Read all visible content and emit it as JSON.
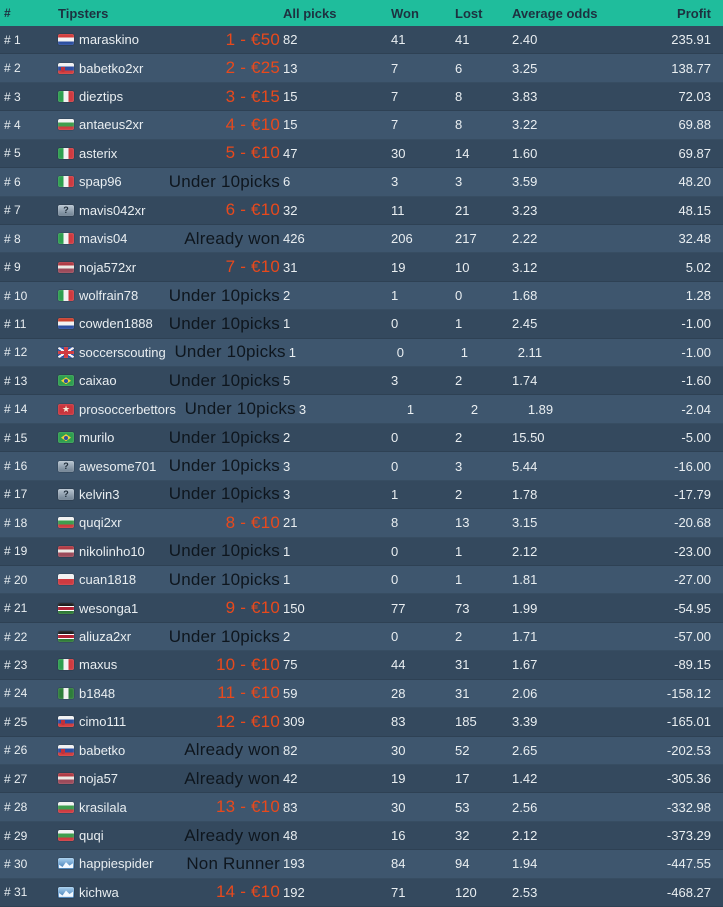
{
  "header": {
    "rank": "#",
    "tipsters": "Tipsters",
    "all_picks": "All picks",
    "won": "Won",
    "lost": "Lost",
    "avg_odds": "Average odds",
    "profit": "Profit"
  },
  "colors": {
    "header_bg": "#1fbd9c",
    "header_text": "#1d3140",
    "row_odd": "#34495e",
    "row_even": "#3e566e",
    "row_text": "#e9eef1",
    "prize_text": "#e8491c",
    "status_text": "#0e161e"
  },
  "rows": [
    {
      "rank": "# 1",
      "name": "maraskino",
      "flag": "croatia",
      "label": "1 - €50",
      "label_type": "prize",
      "all_picks": "82",
      "won": "41",
      "lost": "41",
      "avg_odds": "2.40",
      "profit": "235.91"
    },
    {
      "rank": "# 2",
      "name": "babetko2xr",
      "flag": "slovakia",
      "label": "2 - €25",
      "label_type": "prize",
      "all_picks": "13",
      "won": "7",
      "lost": "6",
      "avg_odds": "3.25",
      "profit": "138.77"
    },
    {
      "rank": "# 3",
      "name": "dieztips",
      "flag": "italy",
      "label": "3 - €15",
      "label_type": "prize",
      "all_picks": "15",
      "won": "7",
      "lost": "8",
      "avg_odds": "3.83",
      "profit": "72.03"
    },
    {
      "rank": "# 4",
      "name": "antaeus2xr",
      "flag": "bulgaria",
      "label": "4 - €10",
      "label_type": "prize",
      "all_picks": "15",
      "won": "7",
      "lost": "8",
      "avg_odds": "3.22",
      "profit": "69.88"
    },
    {
      "rank": "# 5",
      "name": "asterix",
      "flag": "italy",
      "label": "5 - €10",
      "label_type": "prize",
      "all_picks": "47",
      "won": "30",
      "lost": "14",
      "avg_odds": "1.60",
      "profit": "69.87"
    },
    {
      "rank": "# 6",
      "name": "spap96",
      "flag": "italy",
      "label": "Under 10picks",
      "label_type": "status",
      "all_picks": "6",
      "won": "3",
      "lost": "3",
      "avg_odds": "3.59",
      "profit": "48.20"
    },
    {
      "rank": "# 7",
      "name": "mavis042xr",
      "flag": "unknown",
      "label": "6 - €10",
      "label_type": "prize",
      "all_picks": "32",
      "won": "11",
      "lost": "21",
      "avg_odds": "3.23",
      "profit": "48.15"
    },
    {
      "rank": "# 8",
      "name": "mavis04",
      "flag": "italy",
      "label": "Already won",
      "label_type": "status",
      "all_picks": "426",
      "won": "206",
      "lost": "217",
      "avg_odds": "2.22",
      "profit": "32.48"
    },
    {
      "rank": "# 9",
      "name": "noja572xr",
      "flag": "latvia",
      "label": "7 - €10",
      "label_type": "prize",
      "all_picks": "31",
      "won": "19",
      "lost": "10",
      "avg_odds": "3.12",
      "profit": "5.02"
    },
    {
      "rank": "# 10",
      "name": "wolfrain78",
      "flag": "italy",
      "label": "Under 10picks",
      "label_type": "status",
      "all_picks": "2",
      "won": "1",
      "lost": "0",
      "avg_odds": "1.68",
      "profit": "1.28"
    },
    {
      "rank": "# 11",
      "name": "cowden1888",
      "flag": "netherlands",
      "label": "Under 10picks",
      "label_type": "status",
      "all_picks": "1",
      "won": "0",
      "lost": "1",
      "avg_odds": "2.45",
      "profit": "-1.00"
    },
    {
      "rank": "# 12",
      "name": "soccerscouting",
      "flag": "uk",
      "label": "Under 10picks",
      "label_type": "status",
      "all_picks": "1",
      "won": "0",
      "lost": "1",
      "avg_odds": "2.11",
      "profit": "-1.00"
    },
    {
      "rank": "# 13",
      "name": "caixao",
      "flag": "brazil",
      "label": "Under 10picks",
      "label_type": "status",
      "all_picks": "5",
      "won": "3",
      "lost": "2",
      "avg_odds": "1.74",
      "profit": "-1.60"
    },
    {
      "rank": "# 14",
      "name": "prosoccerbettors",
      "flag": "star",
      "label": "Under 10picks",
      "label_type": "status",
      "all_picks": "3",
      "won": "1",
      "lost": "2",
      "avg_odds": "1.89",
      "profit": "-2.04"
    },
    {
      "rank": "# 15",
      "name": "murilo",
      "flag": "brazil",
      "label": "Under 10picks",
      "label_type": "status",
      "all_picks": "2",
      "won": "0",
      "lost": "2",
      "avg_odds": "15.50",
      "profit": "-5.00"
    },
    {
      "rank": "# 16",
      "name": "awesome701",
      "flag": "unknown",
      "label": "Under 10picks",
      "label_type": "status",
      "all_picks": "3",
      "won": "0",
      "lost": "3",
      "avg_odds": "5.44",
      "profit": "-16.00"
    },
    {
      "rank": "# 17",
      "name": "kelvin3",
      "flag": "unknown",
      "label": "Under 10picks",
      "label_type": "status",
      "all_picks": "3",
      "won": "1",
      "lost": "2",
      "avg_odds": "1.78",
      "profit": "-17.79"
    },
    {
      "rank": "# 18",
      "name": "quqi2xr",
      "flag": "bulgaria",
      "label": "8 - €10",
      "label_type": "prize",
      "all_picks": "21",
      "won": "8",
      "lost": "13",
      "avg_odds": "3.15",
      "profit": "-20.68"
    },
    {
      "rank": "# 19",
      "name": "nikolinho10",
      "flag": "latvia",
      "label": "Under 10picks",
      "label_type": "status",
      "all_picks": "1",
      "won": "0",
      "lost": "1",
      "avg_odds": "2.12",
      "profit": "-23.00"
    },
    {
      "rank": "# 20",
      "name": "cuan1818",
      "flag": "poland",
      "label": "Under 10picks",
      "label_type": "status",
      "all_picks": "1",
      "won": "0",
      "lost": "1",
      "avg_odds": "1.81",
      "profit": "-27.00"
    },
    {
      "rank": "# 21",
      "name": "wesonga1",
      "flag": "kenya",
      "label": "9 - €10",
      "label_type": "prize",
      "all_picks": "150",
      "won": "77",
      "lost": "73",
      "avg_odds": "1.99",
      "profit": "-54.95"
    },
    {
      "rank": "# 22",
      "name": "aliuza2xr",
      "flag": "kenya",
      "label": "Under 10picks",
      "label_type": "status",
      "all_picks": "2",
      "won": "0",
      "lost": "2",
      "avg_odds": "1.71",
      "profit": "-57.00"
    },
    {
      "rank": "# 23",
      "name": "maxus",
      "flag": "italy",
      "label": "10 - €10",
      "label_type": "prize",
      "all_picks": "75",
      "won": "44",
      "lost": "31",
      "avg_odds": "1.67",
      "profit": "-89.15"
    },
    {
      "rank": "# 24",
      "name": "b1848",
      "flag": "nigeria",
      "label": "11 - €10",
      "label_type": "prize",
      "all_picks": "59",
      "won": "28",
      "lost": "31",
      "avg_odds": "2.06",
      "profit": "-158.12"
    },
    {
      "rank": "# 25",
      "name": "cimo111",
      "flag": "slovakia",
      "label": "12 - €10",
      "label_type": "prize",
      "all_picks": "309",
      "won": "83",
      "lost": "185",
      "avg_odds": "3.39",
      "profit": "-165.01"
    },
    {
      "rank": "# 26",
      "name": "babetko",
      "flag": "slovakia",
      "label": "Already won",
      "label_type": "status",
      "all_picks": "82",
      "won": "30",
      "lost": "52",
      "avg_odds": "2.65",
      "profit": "-202.53"
    },
    {
      "rank": "# 27",
      "name": "noja57",
      "flag": "latvia",
      "label": "Already won",
      "label_type": "status",
      "all_picks": "42",
      "won": "19",
      "lost": "17",
      "avg_odds": "1.42",
      "profit": "-305.36"
    },
    {
      "rank": "# 28",
      "name": "krasilala",
      "flag": "bulgaria",
      "label": "13 - €10",
      "label_type": "prize",
      "all_picks": "83",
      "won": "30",
      "lost": "53",
      "avg_odds": "2.56",
      "profit": "-332.98"
    },
    {
      "rank": "# 29",
      "name": "quqi",
      "flag": "bulgaria",
      "label": "Already won",
      "label_type": "status",
      "all_picks": "48",
      "won": "16",
      "lost": "32",
      "avg_odds": "2.12",
      "profit": "-373.29"
    },
    {
      "rank": "# 30",
      "name": "happiespider",
      "flag": "chart",
      "label": "Non Runner",
      "label_type": "status",
      "all_picks": "193",
      "won": "84",
      "lost": "94",
      "avg_odds": "1.94",
      "profit": "-447.55"
    },
    {
      "rank": "# 31",
      "name": "kichwa",
      "flag": "chart",
      "label": "14 - €10",
      "label_type": "prize",
      "all_picks": "192",
      "won": "71",
      "lost": "120",
      "avg_odds": "2.53",
      "profit": "-468.27"
    }
  ]
}
